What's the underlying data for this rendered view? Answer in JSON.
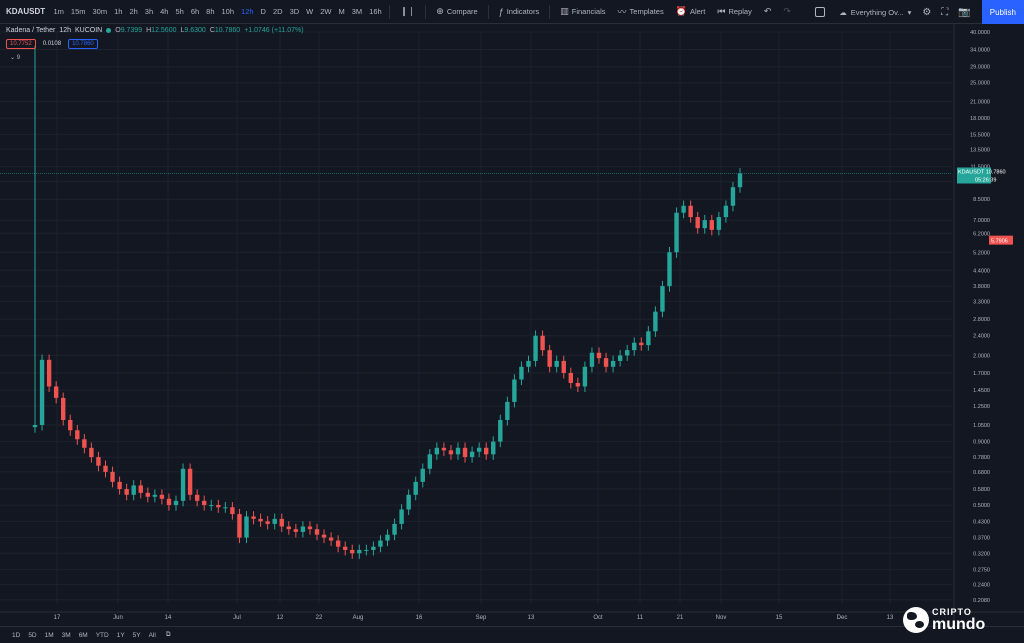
{
  "toolbar": {
    "symbol": "KDAUSDT",
    "timeframes": [
      "1m",
      "15m",
      "30m",
      "1h",
      "2h",
      "3h",
      "4h",
      "5h",
      "6h",
      "8h",
      "10h",
      "12h",
      "D",
      "2D",
      "3D",
      "W",
      "2W",
      "M",
      "3M",
      "16h"
    ],
    "active_timeframe": "12h",
    "compare": "Compare",
    "indicators": "Indicators",
    "financials": "Financials",
    "templates": "Templates",
    "alert": "Alert",
    "replay": "Replay",
    "layout_name": "Everything Ov...",
    "publish": "Publish"
  },
  "legend": {
    "title": "Kadena / Tether",
    "interval": "12h",
    "exchange": "KUCOIN",
    "o_label": "O",
    "o": "9.7399",
    "h_label": "H",
    "h": "12.5600",
    "l_label": "L",
    "l": "9.6300",
    "c_label": "C",
    "c": "10.7860",
    "change": "+1.0746 (+11.07%)",
    "sell": "10.7752",
    "spread": "0.0108",
    "buy": "10.7860",
    "indicator_count": "9"
  },
  "bottom": {
    "ranges": [
      "1D",
      "5D",
      "1M",
      "3M",
      "6M",
      "YTD",
      "1Y",
      "5Y",
      "All"
    ]
  },
  "watermark": {
    "top": "CRIPTO",
    "bottom": "mundo"
  },
  "colors": {
    "bg": "#131722",
    "up": "#26a69a",
    "down": "#ef5350",
    "grid": "#1e222d",
    "accent": "#2962ff"
  },
  "chart_data": {
    "type": "candlestick",
    "symbol": "KDAUSDT",
    "y_scale": "log",
    "y_ticks": [
      "40.0000",
      "34.0000",
      "29.0000",
      "25.0000",
      "21.0000",
      "18.0000",
      "15.5000",
      "13.5000",
      "11.5000",
      "10.0000",
      "8.5000",
      "7.0000",
      "6.2000",
      "5.2000",
      "4.4000",
      "3.8000",
      "3.3000",
      "2.8000",
      "2.4000",
      "2.0000",
      "1.7000",
      "1.4500",
      "1.2500",
      "1.0500",
      "0.9000",
      "0.7800",
      "0.6800",
      "0.5800",
      "0.5000",
      "0.4300",
      "0.3700",
      "0.3200",
      "0.2750",
      "0.2400",
      "0.2080"
    ],
    "x_ticks": [
      "17",
      "Jun",
      "14",
      "Jul",
      "12",
      "22",
      "Aug",
      "16",
      "Sep",
      "13",
      "Oct",
      "11",
      "21",
      "Nov",
      "15",
      "Dec",
      "13"
    ],
    "price_label": {
      "name": "KDAUSDT",
      "value": "10.7860",
      "countdown": "05:26:39"
    },
    "red_label": "5.7906",
    "closes": [
      1.05,
      1.92,
      1.5,
      1.35,
      1.1,
      1.0,
      0.92,
      0.85,
      0.78,
      0.72,
      0.68,
      0.62,
      0.58,
      0.55,
      0.6,
      0.56,
      0.54,
      0.55,
      0.53,
      0.5,
      0.52,
      0.7,
      0.55,
      0.52,
      0.5,
      0.5,
      0.49,
      0.49,
      0.46,
      0.37,
      0.45,
      0.44,
      0.43,
      0.42,
      0.44,
      0.41,
      0.4,
      0.39,
      0.41,
      0.4,
      0.38,
      0.37,
      0.36,
      0.34,
      0.33,
      0.32,
      0.33,
      0.33,
      0.34,
      0.36,
      0.38,
      0.42,
      0.48,
      0.55,
      0.62,
      0.7,
      0.8,
      0.85,
      0.83,
      0.8,
      0.85,
      0.78,
      0.82,
      0.85,
      0.8,
      0.9,
      1.1,
      1.3,
      1.6,
      1.8,
      1.9,
      2.4,
      2.1,
      1.8,
      1.9,
      1.7,
      1.55,
      1.5,
      1.8,
      2.05,
      1.95,
      1.8,
      1.9,
      2.0,
      2.1,
      2.25,
      2.2,
      2.5,
      3.0,
      3.8,
      5.2,
      7.5,
      8.0,
      7.2,
      6.5,
      7.0,
      6.4,
      7.2,
      8.0,
      9.5,
      10.79
    ]
  }
}
